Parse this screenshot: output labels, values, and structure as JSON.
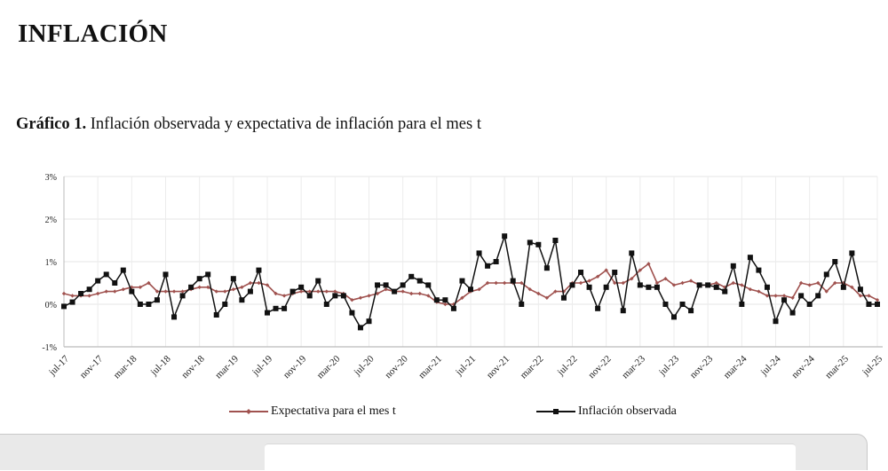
{
  "page": {
    "title": "INFLACIÓN",
    "caption_bold": "Gráfico 1.",
    "caption_text": " Inflación observada y expectativa de inflación para el mes t"
  },
  "chart_data": {
    "type": "line",
    "title": "Inflación observada y expectativa de inflación para el mes t",
    "xlabel": "",
    "ylabel": "",
    "ylim": [
      -1,
      3
    ],
    "yticks": [
      -1,
      0,
      1,
      2,
      3
    ],
    "ytick_labels": [
      "-1%",
      "0%",
      "1%",
      "2%",
      "3%"
    ],
    "grid": true,
    "legend_position": "bottom",
    "x_start": "jul-17",
    "x_end": "jul-25",
    "xtick_labels": [
      "jul-17",
      "nov-17",
      "mar-18",
      "jul-18",
      "nov-18",
      "mar-19",
      "jul-19",
      "nov-19",
      "mar-20",
      "jul-20",
      "nov-20",
      "mar-21",
      "jul-21",
      "nov-21",
      "mar-22",
      "jul-22",
      "nov-22",
      "mar-23",
      "jul-23",
      "nov-23",
      "mar-24",
      "jul-24",
      "nov-24",
      "mar-25",
      "jul-25"
    ],
    "unit": "%",
    "series": [
      {
        "name": "Expectativa para el mes t",
        "color": "#a0524f",
        "marker": "diamond",
        "values": [
          0.25,
          0.2,
          0.2,
          0.2,
          0.25,
          0.3,
          0.3,
          0.35,
          0.4,
          0.4,
          0.5,
          0.3,
          0.3,
          0.3,
          0.3,
          0.35,
          0.4,
          0.4,
          0.3,
          0.3,
          0.35,
          0.4,
          0.5,
          0.5,
          0.45,
          0.25,
          0.2,
          0.25,
          0.3,
          0.3,
          0.3,
          0.3,
          0.3,
          0.25,
          0.1,
          0.15,
          0.2,
          0.25,
          0.35,
          0.3,
          0.3,
          0.25,
          0.25,
          0.2,
          0.05,
          0.0,
          0.0,
          0.15,
          0.3,
          0.35,
          0.5,
          0.5,
          0.5,
          0.5,
          0.5,
          0.35,
          0.25,
          0.15,
          0.3,
          0.3,
          0.5,
          0.5,
          0.55,
          0.65,
          0.8,
          0.5,
          0.5,
          0.6,
          0.8,
          0.95,
          0.5,
          0.6,
          0.45,
          0.5,
          0.55,
          0.45,
          0.45,
          0.5,
          0.4,
          0.5,
          0.45,
          0.35,
          0.3,
          0.2,
          0.2,
          0.2,
          0.15,
          0.5,
          0.45,
          0.5,
          0.3,
          0.5,
          0.5,
          0.4,
          0.2,
          0.2,
          0.1
        ]
      },
      {
        "name": "Inflación observada",
        "color": "#111111",
        "marker": "square",
        "values": [
          -0.05,
          0.05,
          0.25,
          0.35,
          0.55,
          0.7,
          0.5,
          0.8,
          0.3,
          0.0,
          0.0,
          0.1,
          0.7,
          -0.3,
          0.2,
          0.4,
          0.6,
          0.7,
          -0.25,
          0.0,
          0.6,
          0.1,
          0.3,
          0.8,
          -0.2,
          -0.1,
          -0.1,
          0.3,
          0.4,
          0.2,
          0.55,
          0.0,
          0.2,
          0.2,
          -0.2,
          -0.55,
          -0.4,
          0.45,
          0.45,
          0.3,
          0.45,
          0.65,
          0.55,
          0.45,
          0.1,
          0.1,
          -0.1,
          0.55,
          0.35,
          1.2,
          0.9,
          1.0,
          1.6,
          0.55,
          0.0,
          1.45,
          1.4,
          0.85,
          1.5,
          0.15,
          0.45,
          0.75,
          0.4,
          -0.1,
          0.4,
          0.75,
          -0.15,
          1.2,
          0.45,
          0.4,
          0.4,
          0.0,
          -0.3,
          0.0,
          -0.15,
          0.45,
          0.45,
          0.4,
          0.3,
          0.9,
          0.0,
          1.1,
          0.8,
          0.4,
          -0.4,
          0.1,
          -0.2,
          0.2,
          0.0,
          0.2,
          0.7,
          1.0,
          0.4,
          1.2,
          0.35,
          0.0,
          0.0
        ]
      }
    ]
  },
  "legend": {
    "items": [
      "Expectativa para el mes t",
      "Inflación observada"
    ]
  }
}
